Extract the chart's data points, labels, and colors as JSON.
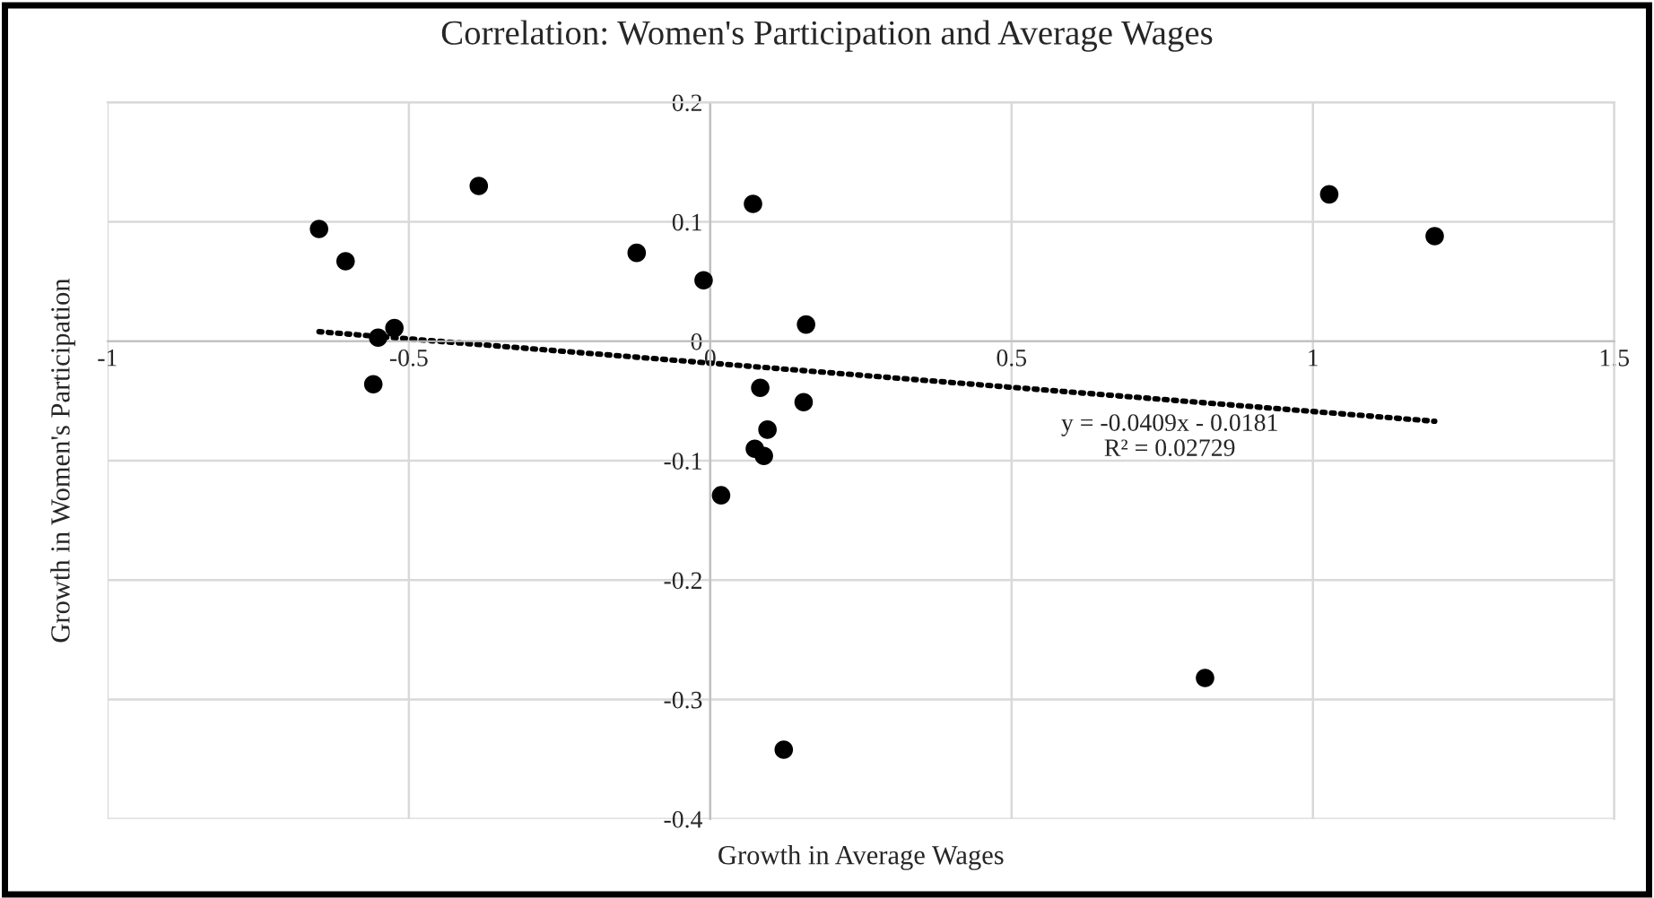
{
  "chart_data": {
    "type": "scatter",
    "title": "Correlation: Women's Participation and Average Wages",
    "xlabel": "Growth in Average Wages",
    "ylabel": "Growth in Women's Participation",
    "series": [
      {
        "color": "#000000",
        "x": [
          -0.649,
          -0.605,
          -0.551,
          -0.524,
          -0.559,
          -0.384,
          -0.122,
          -0.011,
          0.071,
          0.159,
          0.083,
          0.155,
          0.095,
          0.074,
          0.089,
          0.018,
          0.122,
          0.821,
          1.027,
          1.202
        ],
        "values": [
          0.094,
          0.067,
          0.003,
          0.011,
          -0.036,
          0.13,
          0.074,
          0.051,
          0.115,
          0.014,
          -0.039,
          -0.051,
          -0.074,
          -0.09,
          -0.096,
          -0.129,
          -0.342,
          -0.282,
          0.123,
          0.088
        ],
        "marker": "circle"
      },
      {
        "type": "line",
        "color": "#000000",
        "x": [
          -0.649,
          1.202
        ],
        "values": [
          0.008,
          -0.067
        ],
        "line_style": "dotted",
        "marker": "none"
      }
    ],
    "xlim": [
      -1,
      1.5
    ],
    "xticks": [
      -1,
      -0.5,
      0,
      0.5,
      1,
      1.5
    ],
    "ylim": [
      -0.4,
      0.2
    ],
    "yticks": [
      0.2,
      0.1,
      0,
      -0.1,
      -0.2,
      -0.3,
      -0.4
    ],
    "grid": true,
    "legend": false,
    "annotations": [
      "y = -0.0409x - 0.0181",
      "R² = 0.02729"
    ]
  }
}
